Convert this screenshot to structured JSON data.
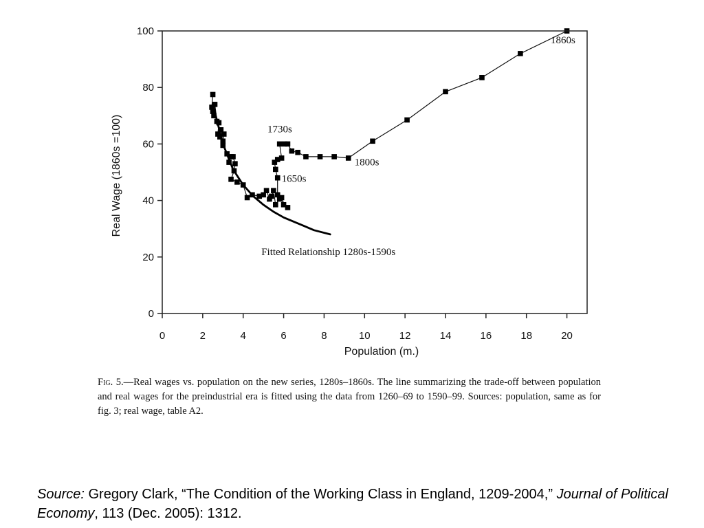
{
  "chart_data": {
    "type": "scatter",
    "xlabel": "Population (m.)",
    "ylabel": "Real Wage (1860s =100)",
    "xlim": [
      0,
      21
    ],
    "ylim": [
      0,
      100
    ],
    "x_ticks": [
      0,
      2,
      4,
      6,
      8,
      10,
      12,
      14,
      16,
      18,
      20
    ],
    "y_ticks": [
      0,
      20,
      40,
      60,
      80,
      100
    ],
    "grid": false,
    "series": [
      {
        "kind": "markers-line",
        "points": [
          [
            2.5,
            77.5
          ],
          [
            2.45,
            73.0
          ],
          [
            2.5,
            71.5
          ],
          [
            2.55,
            70.0
          ],
          [
            2.6,
            74.0
          ],
          [
            2.7,
            68.0
          ],
          [
            2.8,
            67.5
          ],
          [
            2.75,
            63.5
          ],
          [
            2.85,
            62.5
          ],
          [
            2.9,
            65.0
          ],
          [
            3.05,
            63.5
          ],
          [
            3.0,
            61.0
          ],
          [
            3.0,
            59.5
          ],
          [
            3.2,
            56.5
          ],
          [
            3.3,
            53.5
          ],
          [
            3.4,
            55.5
          ],
          [
            3.5,
            55.5
          ],
          [
            3.6,
            53.0
          ],
          [
            3.55,
            50.5
          ],
          [
            3.4,
            47.5
          ],
          [
            3.7,
            46.5
          ],
          [
            4.0,
            45.5
          ],
          [
            4.2,
            41.0
          ],
          [
            4.45,
            42.0
          ],
          [
            4.8,
            41.5
          ],
          [
            5.0,
            42.0
          ],
          [
            5.15,
            43.5
          ],
          [
            5.3,
            40.5
          ],
          [
            5.4,
            41.5
          ],
          [
            5.5,
            43.5
          ],
          [
            5.6,
            38.5
          ],
          [
            5.8,
            40.5
          ],
          [
            5.9,
            41.0
          ],
          [
            6.0,
            38.5
          ],
          [
            6.2,
            37.5
          ],
          [
            5.7,
            42.0
          ],
          [
            5.7,
            48.0
          ],
          [
            5.6,
            51.0
          ],
          [
            5.55,
            53.5
          ],
          [
            5.7,
            54.5
          ],
          [
            5.9,
            55.0
          ],
          [
            5.8,
            60.0
          ],
          [
            6.05,
            60.0
          ],
          [
            6.2,
            60.0
          ],
          [
            6.4,
            57.5
          ],
          [
            6.7,
            57.0
          ],
          [
            7.1,
            55.5
          ],
          [
            7.8,
            55.5
          ],
          [
            8.5,
            55.5
          ],
          [
            9.2,
            55.0
          ],
          [
            10.4,
            61.0
          ],
          [
            12.1,
            68.5
          ],
          [
            14.0,
            78.5
          ],
          [
            15.8,
            83.5
          ],
          [
            17.7,
            92.0
          ],
          [
            20.0,
            100.0
          ]
        ]
      },
      {
        "kind": "fitted-curve",
        "points": [
          [
            2.5,
            74.0
          ],
          [
            3.0,
            60.0
          ],
          [
            3.5,
            51.0
          ],
          [
            4.0,
            45.5
          ],
          [
            4.5,
            41.5
          ],
          [
            5.0,
            38.5
          ],
          [
            5.5,
            36.0
          ],
          [
            6.0,
            34.0
          ],
          [
            6.5,
            32.5
          ],
          [
            7.0,
            31.0
          ],
          [
            7.5,
            29.5
          ],
          [
            8.3,
            28.0
          ]
        ]
      }
    ],
    "annotations": [
      {
        "text": "1860s",
        "x": 19.2,
        "y": 95.6,
        "anchor": "start"
      },
      {
        "text": "1730s",
        "x": 5.2,
        "y": 64.1,
        "anchor": "start"
      },
      {
        "text": "1800s",
        "x": 9.5,
        "y": 52.4,
        "anchor": "start"
      },
      {
        "text": "1650s",
        "x": 5.9,
        "y": 46.6,
        "anchor": "start"
      },
      {
        "text": "Fitted Relationship 1280s-1590s",
        "x": 4.9,
        "y": 20.7,
        "anchor": "start"
      }
    ]
  },
  "caption": {
    "fig_label": "Fig. 5.",
    "text": "—Real wages vs. population on the new series, 1280s–1860s. The line summarizing the trade-off between population and real wages for the preindustrial era is fitted using the data from 1260–69 to 1590–99. Sources: population, same as for fig. 3; real wage, table A2."
  },
  "source": {
    "label": "Source:",
    "author": " Gregory Clark, “The Condition of the Working Class in England, 1209-2004,” ",
    "journal": "Journal of Political Economy",
    "details": ", 113 (Dec. 2005): 1312."
  }
}
